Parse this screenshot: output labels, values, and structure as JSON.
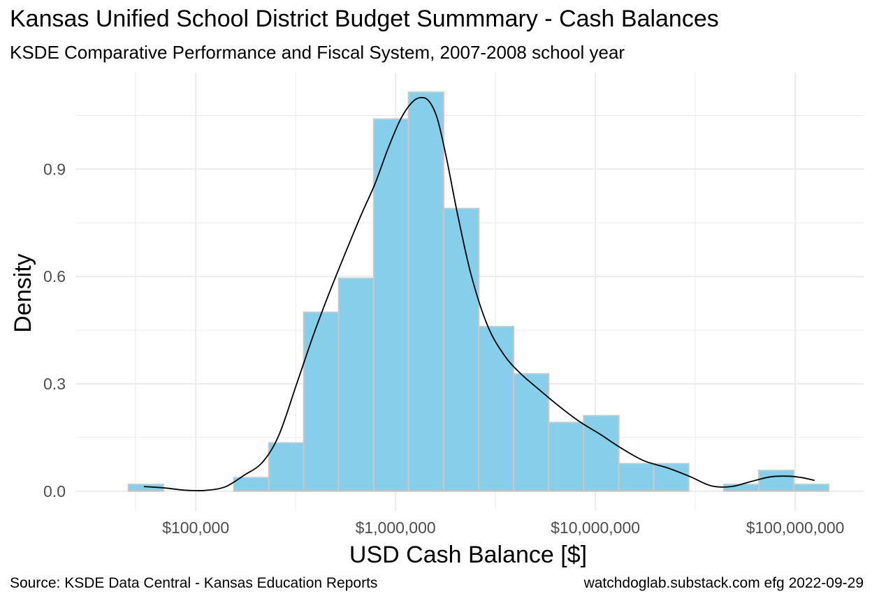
{
  "title": "Kansas Unified School District Budget Summmary - Cash Balances",
  "subtitle": "KSDE Comparative Performance and Fiscal System, 2007-2008 school year",
  "caption_left": "Source:  KSDE Data Central - Kansas Education Reports",
  "caption_right": "watchdoglab.substack.com  efg 2022-09-29",
  "colors": {
    "bar_fill": "#87CEEB",
    "bar_stroke": "#C8C8C8",
    "density_line": "#000000",
    "grid": "#EBEBEB"
  },
  "chart_data": {
    "type": "bar",
    "subtype": "histogram with density curve",
    "xlabel": "USD Cash Balance [$]",
    "ylabel": "Density",
    "x_scale": "log10",
    "xlim": [
      25000,
      220000000
    ],
    "ylim": [
      -0.055,
      1.17
    ],
    "x_ticks": [
      {
        "value": 100000,
        "label": "$100,000"
      },
      {
        "value": 1000000,
        "label": "$1,000,000"
      },
      {
        "value": 10000000,
        "label": "$10,000,000"
      },
      {
        "value": 100000000,
        "label": "$100,000,000"
      }
    ],
    "y_ticks": [
      {
        "value": 0.0,
        "label": "0.0"
      },
      {
        "value": 0.3,
        "label": "0.3"
      },
      {
        "value": 0.6,
        "label": "0.6"
      },
      {
        "value": 0.9,
        "label": "0.9"
      }
    ],
    "grid": true,
    "bins": [
      {
        "x0": 46000,
        "x1": 69000,
        "density": 0.019
      },
      {
        "x0": 69000,
        "x1": 103000,
        "density": 0.0
      },
      {
        "x0": 103000,
        "x1": 155000,
        "density": 0.0
      },
      {
        "x0": 155000,
        "x1": 232000,
        "density": 0.038
      },
      {
        "x0": 232000,
        "x1": 347000,
        "density": 0.135
      },
      {
        "x0": 347000,
        "x1": 519000,
        "density": 0.5
      },
      {
        "x0": 519000,
        "x1": 777000,
        "density": 0.595
      },
      {
        "x0": 777000,
        "x1": 1160000,
        "density": 1.04
      },
      {
        "x0": 1160000,
        "x1": 1740000,
        "density": 1.115
      },
      {
        "x0": 1740000,
        "x1": 2610000,
        "density": 0.79
      },
      {
        "x0": 2610000,
        "x1": 3900000,
        "density": 0.46
      },
      {
        "x0": 3900000,
        "x1": 5840000,
        "density": 0.328
      },
      {
        "x0": 5840000,
        "x1": 8740000,
        "density": 0.192
      },
      {
        "x0": 8740000,
        "x1": 13100000,
        "density": 0.211
      },
      {
        "x0": 13100000,
        "x1": 19600000,
        "density": 0.077
      },
      {
        "x0": 19600000,
        "x1": 29300000,
        "density": 0.077
      },
      {
        "x0": 29300000,
        "x1": 43900000,
        "density": 0.0
      },
      {
        "x0": 43900000,
        "x1": 65700000,
        "density": 0.019
      },
      {
        "x0": 65700000,
        "x1": 98300000,
        "density": 0.058
      },
      {
        "x0": 98300000,
        "x1": 147000000,
        "density": 0.019
      }
    ],
    "density_curve": {
      "x": [
        55000,
        70000,
        88000,
        110000,
        140000,
        175000,
        215000,
        260000,
        320000,
        390000,
        470000,
        560000,
        670000,
        790000,
        920000,
        1060000,
        1200000,
        1330000,
        1470000,
        1620000,
        1800000,
        2050000,
        2400000,
        2900000,
        3500000,
        4200000,
        5200000,
        6500000,
        8300000,
        10500000,
        13500000,
        17500000,
        23000000,
        30000000,
        38000000,
        48000000,
        60000000,
        75000000,
        92000000,
        108000000,
        125000000
      ],
      "y": [
        0.013,
        0.009,
        0.003,
        0.002,
        0.012,
        0.045,
        0.08,
        0.155,
        0.3,
        0.44,
        0.56,
        0.665,
        0.77,
        0.86,
        0.96,
        1.04,
        1.085,
        1.1,
        1.09,
        1.04,
        0.93,
        0.77,
        0.6,
        0.46,
        0.38,
        0.33,
        0.285,
        0.24,
        0.195,
        0.16,
        0.12,
        0.085,
        0.065,
        0.04,
        0.015,
        0.013,
        0.027,
        0.04,
        0.042,
        0.038,
        0.03
      ]
    }
  }
}
